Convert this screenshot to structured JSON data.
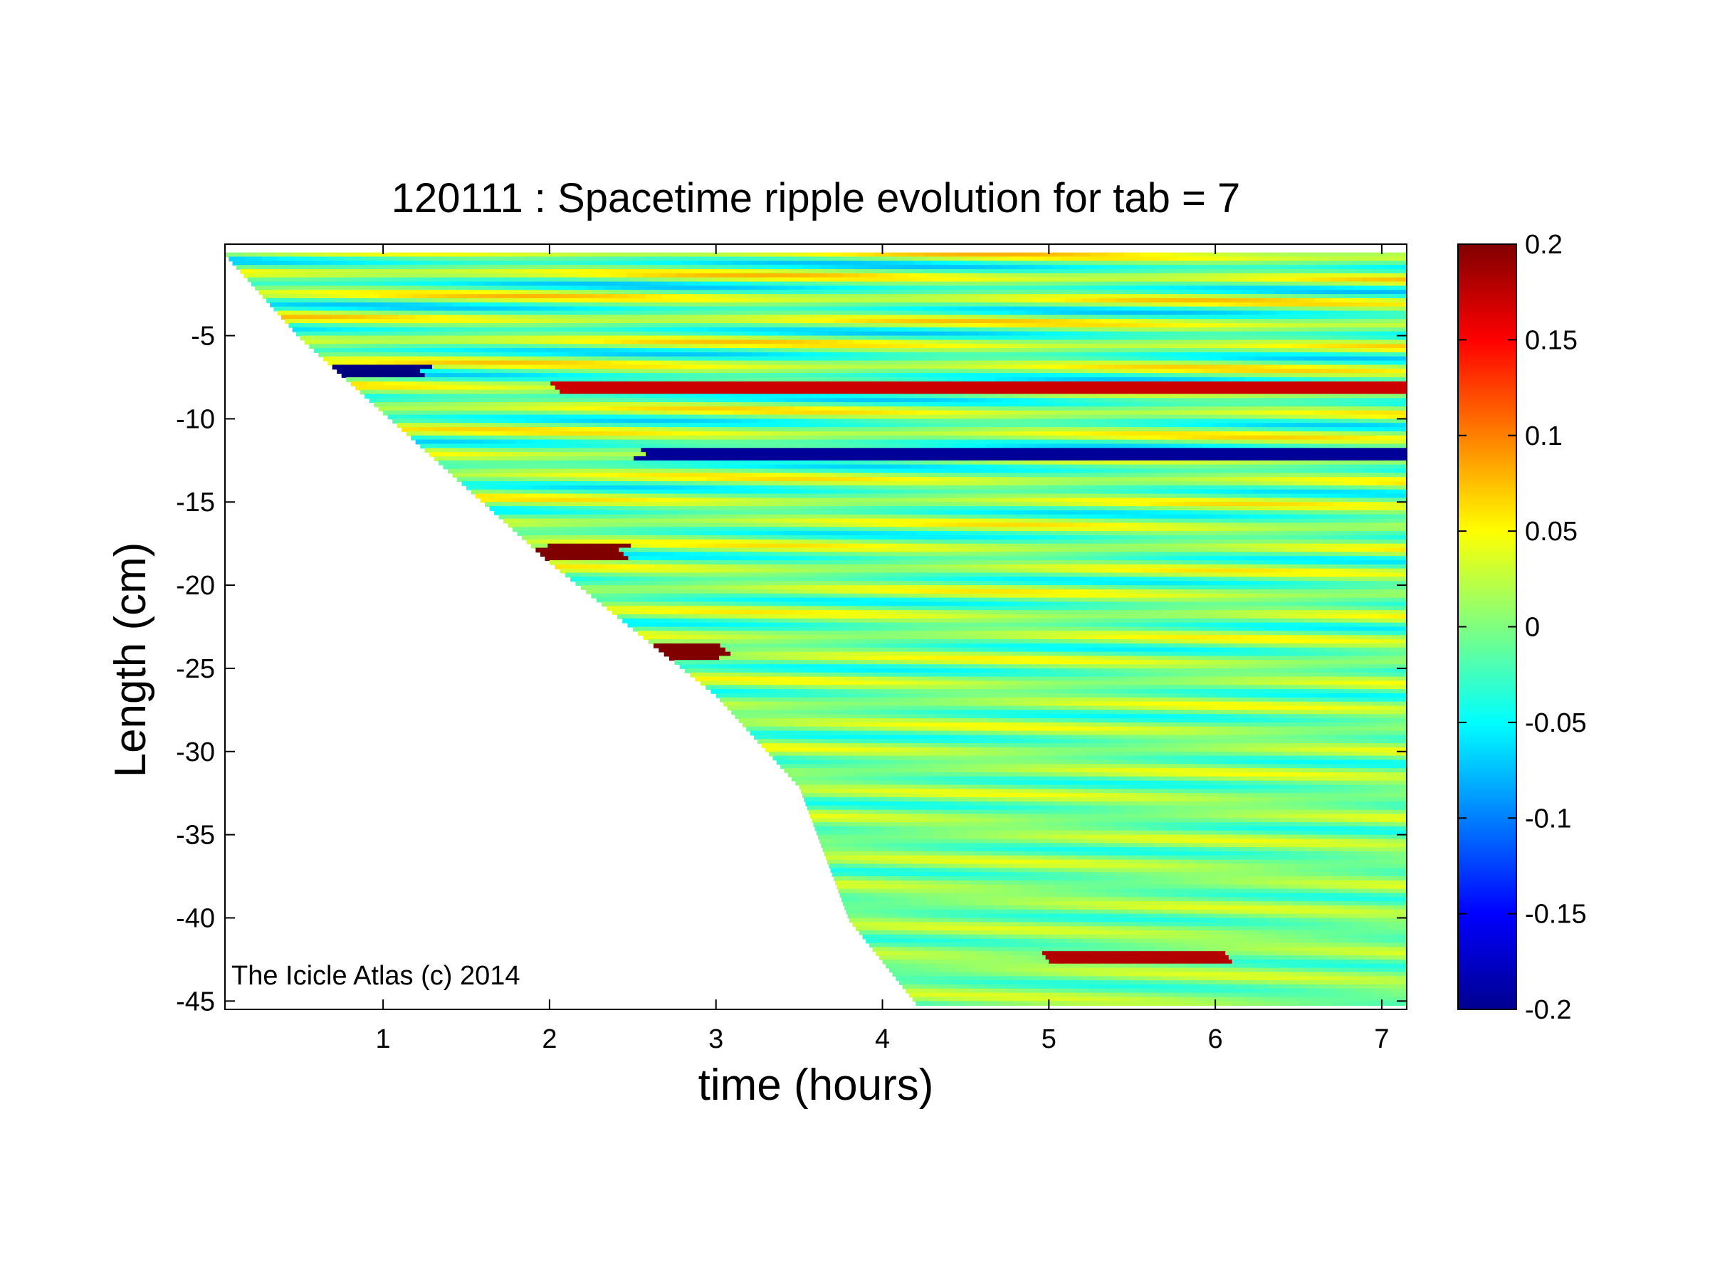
{
  "chart_data": {
    "type": "heatmap",
    "title": "120111 : Spacetime ripple evolution for tab = 7",
    "xlabel": "time (hours)",
    "ylabel": "Length (cm)",
    "xlim": [
      0.05,
      7.15
    ],
    "ylim": [
      -45.5,
      0.5
    ],
    "xticks": [
      1,
      2,
      3,
      4,
      5,
      6,
      7
    ],
    "yticks": [
      -5,
      -10,
      -15,
      -20,
      -25,
      -30,
      -35,
      -40,
      -45
    ],
    "colorbar": {
      "colormap": "jet",
      "clim": [
        -0.2,
        0.2
      ],
      "ticks": [
        0.2,
        0.15,
        0.1,
        0.05,
        0,
        -0.05,
        -0.1,
        -0.15,
        -0.2
      ]
    },
    "growth_front": {
      "x": [
        0.05,
        0.5,
        1.0,
        1.5,
        2.0,
        2.5,
        3.0,
        3.5,
        3.8,
        4.2
      ],
      "y": [
        0.0,
        -5.0,
        -9.5,
        -14.0,
        -18.5,
        -22.5,
        -26.5,
        -32.0,
        -40.0,
        -45.0
      ]
    },
    "strong_features": [
      {
        "x_start": 1.9,
        "x_end": 2.4,
        "y": -17.8,
        "value": 0.2
      },
      {
        "x_start": 0.6,
        "x_end": 1.2,
        "y": -7.0,
        "value": -0.2
      },
      {
        "x_start": 2.6,
        "x_end": 3.0,
        "y": -23.8,
        "value": 0.2
      },
      {
        "x_start": 4.9,
        "x_end": 6.0,
        "y": -42.2,
        "value": 0.18
      },
      {
        "x_start": 2.5,
        "x_end": 7.15,
        "y": -12.0,
        "value": -0.19
      },
      {
        "x_start": 2.0,
        "x_end": 7.15,
        "y": -8.0,
        "value": 0.17
      }
    ],
    "annotation": "The Icicle Atlas (c) 2014",
    "grid": false
  }
}
